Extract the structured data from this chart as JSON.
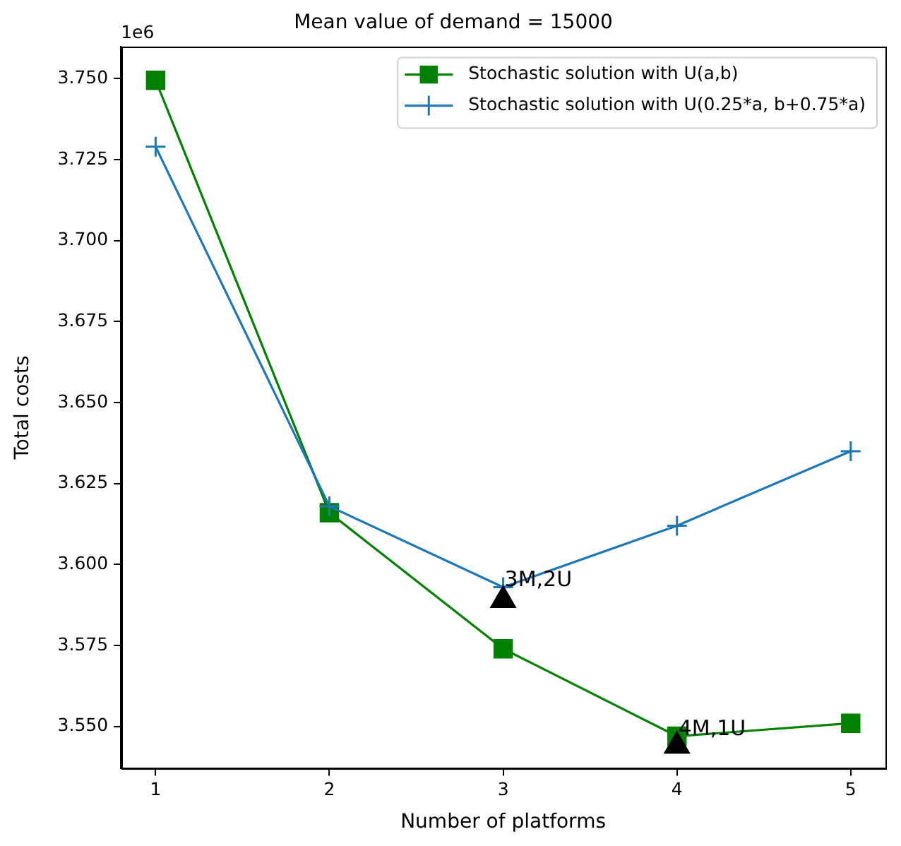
{
  "chart_data": {
    "type": "line",
    "title": "Mean value of demand = 15000",
    "xlabel": "Number of platforms",
    "ylabel": "Total costs",
    "x": [
      1,
      2,
      3,
      4,
      5
    ],
    "series": [
      {
        "name": "Stochastic solution with U(a,b)",
        "color": "#008000",
        "marker": "square",
        "values": [
          3.7495,
          3.616,
          3.574,
          3.547,
          3.551
        ]
      },
      {
        "name": "Stochastic solution with U(0.25*a, b+0.75*a)",
        "color": "#1f77b4",
        "marker": "cross",
        "values": [
          3.729,
          3.618,
          3.593,
          3.612,
          3.635
        ]
      },
      {
        "type": "scatter",
        "color": "#000000",
        "marker": "triangle",
        "x": [
          3,
          4
        ],
        "values": [
          3.589,
          3.544
        ]
      }
    ],
    "xlim": [
      0.8,
      5.2
    ],
    "xticks": [
      1,
      2,
      3,
      4,
      5
    ],
    "ylim": [
      3.537,
      3.76
    ],
    "yticks": [
      {
        "value": 3.55,
        "label": "3.550"
      },
      {
        "value": 3.575,
        "label": "3.575"
      },
      {
        "value": 3.6,
        "label": "3.600"
      },
      {
        "value": 3.625,
        "label": "3.625"
      },
      {
        "value": 3.65,
        "label": "3.650"
      },
      {
        "value": 3.675,
        "label": "3.675"
      },
      {
        "value": 3.7,
        "label": "3.700"
      },
      {
        "value": 3.725,
        "label": "3.725"
      },
      {
        "value": 3.75,
        "label": "3.750"
      }
    ],
    "annotations": [
      "1e6",
      {
        "text": "3M,2U",
        "x": 3,
        "y": 3.593
      },
      {
        "text": "4M,1U",
        "x": 4,
        "y": 3.547
      }
    ],
    "legend": "top right"
  }
}
